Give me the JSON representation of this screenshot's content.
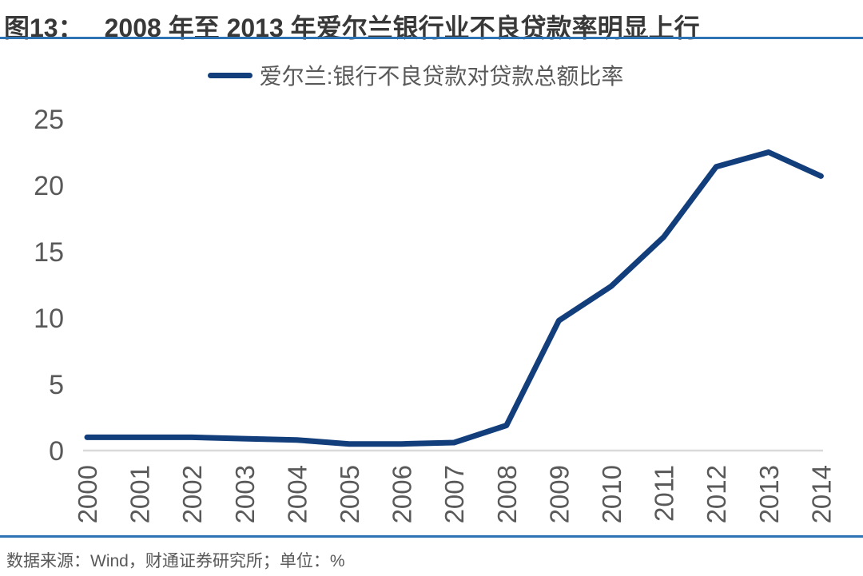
{
  "figure": {
    "label": "图13：",
    "title": "2008 年至 2013 年爱尔兰银行业不良贷款率明显上行",
    "source_note": "数据来源：Wind，财通证券研究所；单位：%"
  },
  "legend": {
    "series_label": "爱尔兰:银行不良贷款对贷款总额比率"
  },
  "colors": {
    "line": "#133E7C",
    "rule_blue": "#2E74B5",
    "axis_text": "#595959",
    "title_text": "#383838",
    "baseline_grid": "#D9D9D9"
  },
  "chart_data": {
    "type": "line",
    "title": "2008 年至 2013 年爱尔兰银行业不良贷款率明显上行",
    "categories": [
      2000,
      2001,
      2002,
      2003,
      2004,
      2005,
      2006,
      2007,
      2008,
      2009,
      2010,
      2011,
      2012,
      2013,
      2014
    ],
    "series": [
      {
        "name": "爱尔兰:银行不良贷款对贷款总额比率",
        "values": [
          1.0,
          1.0,
          1.0,
          0.9,
          0.8,
          0.5,
          0.5,
          0.6,
          1.9,
          9.8,
          12.4,
          16.1,
          21.4,
          22.5,
          20.7
        ]
      }
    ],
    "xlabel": "",
    "ylabel": "",
    "unit": "%",
    "ylim": [
      0,
      25
    ],
    "yticks": [
      0,
      5,
      10,
      15,
      20,
      25
    ],
    "grid": "zero-baseline-only",
    "legend_position": "top-center",
    "x_tick_rotation": -90
  }
}
